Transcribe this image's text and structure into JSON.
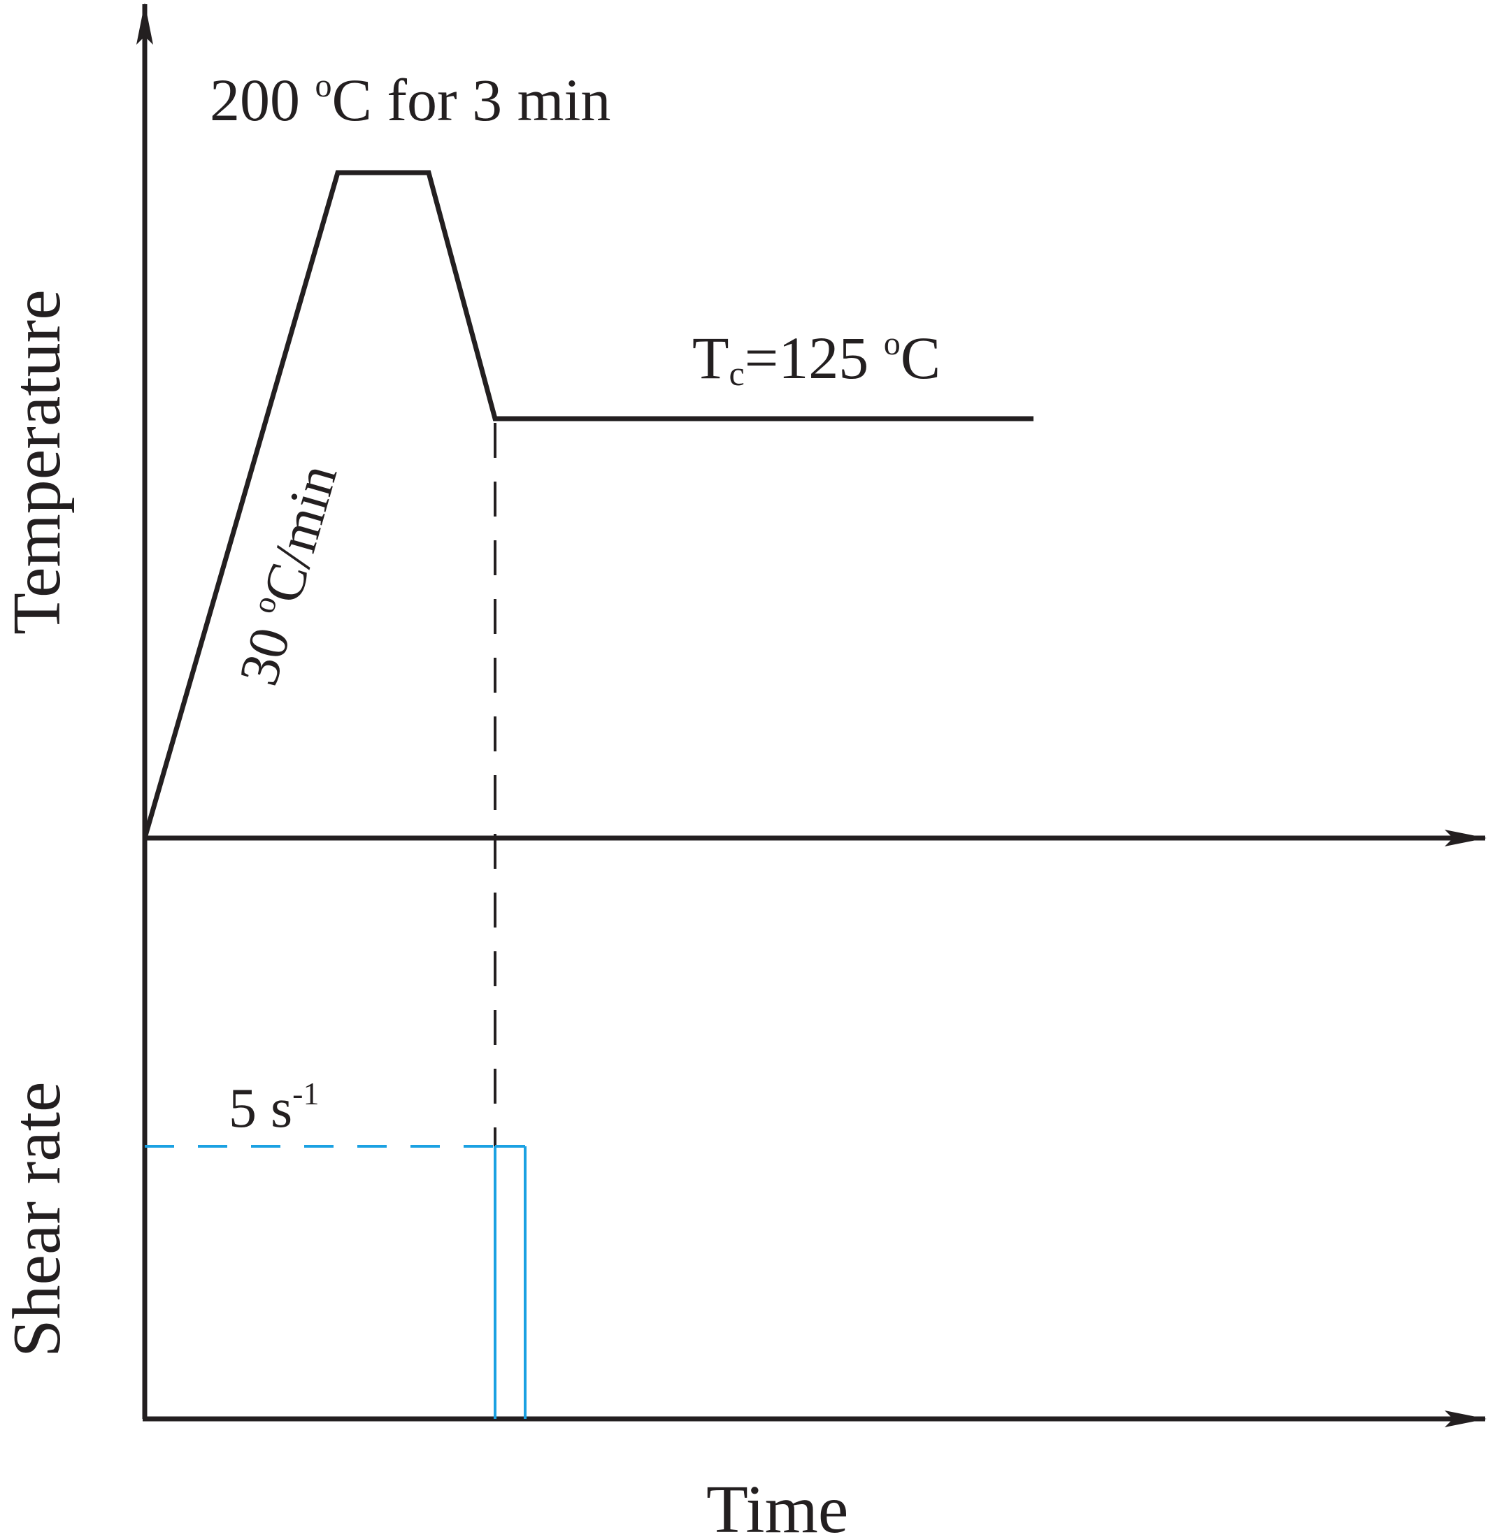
{
  "colors": {
    "ink": "#231f20",
    "shear_line": "#1ba1e2"
  },
  "labels": {
    "hold_label": {
      "main": "200 ",
      "sup": "o",
      "tail": "C for 3 min"
    },
    "ramp_label": {
      "main": "30 ",
      "sup": "o",
      "tail": "C/min"
    },
    "tc_label": {
      "main": "T",
      "sub": "c",
      "mid": "=125 ",
      "sup": "o",
      "tail": "C"
    },
    "shear_value_label": {
      "main": "5 s",
      "sup": "-1"
    },
    "temperature_axis_title": "Temperature",
    "shear_axis_title": "Shear rate",
    "time_axis_title": "Time"
  }
}
